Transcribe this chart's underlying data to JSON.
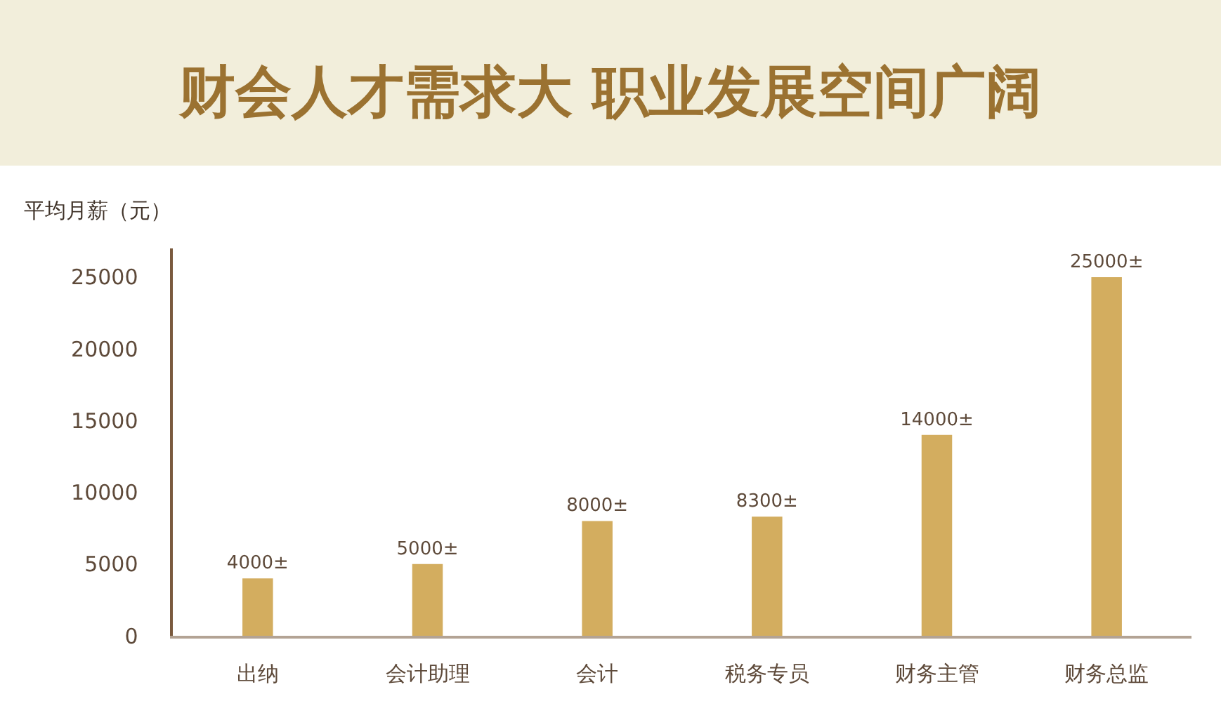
{
  "chart_data": {
    "type": "bar",
    "title": "财会人才需求大 职业发展空间广阔",
    "ylabel": "平均月薪（元）",
    "categories": [
      "出纳",
      "会计助理",
      "会计",
      "税务专员",
      "财务主管",
      "财务总监"
    ],
    "values": [
      4000,
      5000,
      8000,
      8300,
      14000,
      25000
    ],
    "value_labels": [
      "4000±",
      "5000±",
      "8000±",
      "8300±",
      "14000±",
      "25000±"
    ],
    "color": "#d3ad5f",
    "ylim": [
      0,
      27000
    ],
    "yticks": [
      0,
      5000,
      10000,
      15000,
      20000,
      25000
    ]
  }
}
